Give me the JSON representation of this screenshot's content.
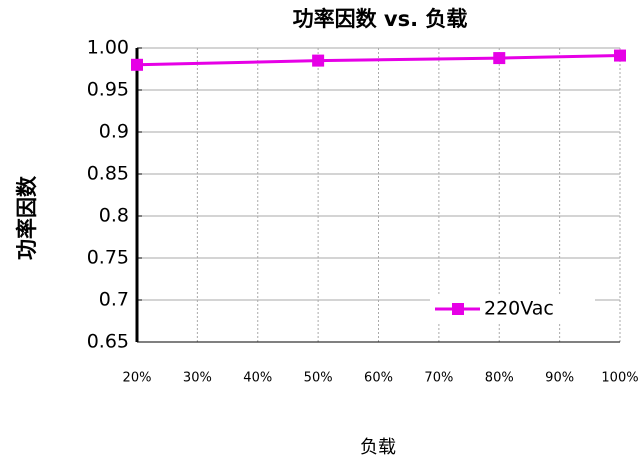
{
  "chart_data": {
    "type": "line",
    "title": "功率因数 vs. 负载",
    "y_label": "功率因数",
    "x_label": "负载",
    "x": [
      20,
      50,
      80,
      100
    ],
    "series": [
      {
        "name": "220Vac",
        "color": "#e600e6",
        "values": [
          0.98,
          0.985,
          0.988,
          0.991
        ]
      }
    ],
    "xlim": [
      20,
      100
    ],
    "xticks": [
      {
        "value": 20,
        "label": "20%"
      },
      {
        "value": 30,
        "label": "30%"
      },
      {
        "value": 40,
        "label": "40%"
      },
      {
        "value": 50,
        "label": "50%"
      },
      {
        "value": 60,
        "label": "60%"
      },
      {
        "value": 70,
        "label": "70%"
      },
      {
        "value": 80,
        "label": "80%"
      },
      {
        "value": 90,
        "label": "90%"
      },
      {
        "value": 100,
        "label": "100%"
      }
    ],
    "ylim": [
      0.65,
      1.0
    ],
    "yticks": [
      0.65,
      0.7,
      0.75,
      0.8,
      0.85,
      0.9,
      0.95,
      {
        "value": 1.0,
        "label": "1.00"
      }
    ],
    "grid": true,
    "legend": "lower right"
  }
}
